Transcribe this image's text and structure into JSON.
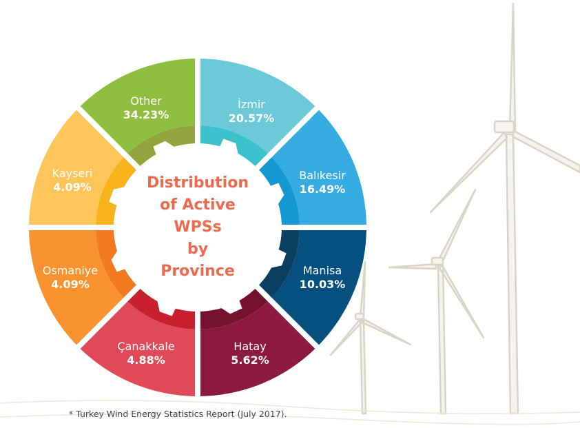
{
  "chart_data": {
    "type": "pie",
    "title": "Distribution of Active WPSs by Province",
    "unit": "%",
    "slices": [
      {
        "label": "İzmir",
        "value": 20.57,
        "display": "20.57%",
        "color": "#6ccad8",
        "inner_color": "#3bc0cc"
      },
      {
        "label": "Balıkesir",
        "value": 16.49,
        "display": "16.49%",
        "color": "#35ade2",
        "inner_color": "#1598d2"
      },
      {
        "label": "Manisa",
        "value": 10.03,
        "display": "10.03%",
        "color": "#05507e",
        "inner_color": "#0b3f62"
      },
      {
        "label": "Hatay",
        "value": 5.62,
        "display": "5.62%",
        "color": "#8b1a3e",
        "inner_color": "#761230"
      },
      {
        "label": "Çanakkale",
        "value": 4.88,
        "display": "4.88%",
        "color": "#e04a58",
        "inner_color": "#c8202f"
      },
      {
        "label": "Osmaniye",
        "value": 4.09,
        "display": "4.09%",
        "color": "#f7922f",
        "inner_color": "#f47a20"
      },
      {
        "label": "Kayseri",
        "value": 4.09,
        "display": "4.09%",
        "color": "#fdc55a",
        "inner_color": "#f9b31c"
      },
      {
        "label": "Other",
        "value": 34.23,
        "display": "34.23%",
        "color": "#8fbe3f",
        "inner_color": "#94a43e"
      }
    ],
    "equal_segments": true,
    "title_color": "#ec6a4e"
  },
  "title_lines": [
    "Distribution",
    "of Active",
    "WPSs",
    "by",
    "Province"
  ],
  "footnote": "* Turkey Wind Energy Statistics Report (July 2017)."
}
